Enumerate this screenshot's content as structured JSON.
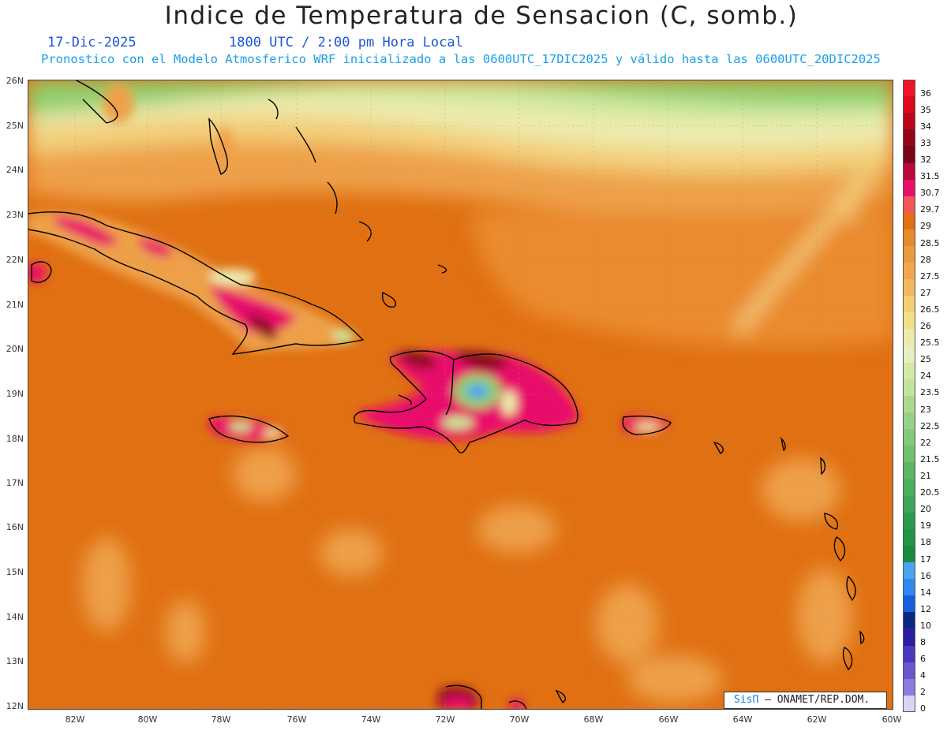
{
  "header": {
    "title": "Indice de Temperatura de Sensacion (C, somb.)",
    "date": "17-Dic-2025",
    "time": "1800 UTC / 2:00 pm Hora Local",
    "description": "Pronostico con el Modelo Atmosferico WRF inicializado a las 0600UTC_17DIC2025 y válido hasta las  0600UTC_20DIC2025"
  },
  "axes": {
    "lat_labels": [
      "26N",
      "25N",
      "24N",
      "23N",
      "22N",
      "21N",
      "20N",
      "19N",
      "18N",
      "17N",
      "16N",
      "15N",
      "14N",
      "13N",
      "12N"
    ],
    "lon_labels": [
      "82W",
      "80W",
      "78W",
      "76W",
      "74W",
      "72W",
      "70W",
      "68W",
      "66W",
      "64W",
      "62W",
      "60W"
    ]
  },
  "colorbar": {
    "labels": [
      "36",
      "35",
      "34",
      "33",
      "32",
      "31.5",
      "30.7",
      "29.7",
      "29",
      "28.5",
      "28",
      "27.5",
      "27",
      "26.5",
      "26",
      "25.5",
      "25",
      "24",
      "23.5",
      "23",
      "22.5",
      "22",
      "21.5",
      "21",
      "20.5",
      "20",
      "19",
      "18",
      "17",
      "16",
      "14",
      "12",
      "10",
      "8",
      "6",
      "4",
      "2",
      "0"
    ],
    "colors": [
      "#f2122a",
      "#dc0a1c",
      "#b8081a",
      "#96061a",
      "#7a0418",
      "#b80a3c",
      "#e8106a",
      "#f25656",
      "#e07012",
      "#e78a2e",
      "#eb9a40",
      "#efa84e",
      "#f2b85e",
      "#f5cd72",
      "#f4e08a",
      "#ecebae",
      "#e6efc2",
      "#d4eaa6",
      "#c2e49c",
      "#acda8c",
      "#98d08a",
      "#84c87c",
      "#72c070",
      "#5cb666",
      "#4aae5c",
      "#3ea45a",
      "#2c9a4c",
      "#229446",
      "#178c3e",
      "#4aa4f0",
      "#2c8af0",
      "#1a5ee0",
      "#0a2880",
      "#2a1ea0",
      "#4a36c0",
      "#6c56d0",
      "#8e7ae0",
      "#d8d4f4"
    ]
  },
  "credit": {
    "brand": "SisΠ",
    "text": "– ONAMET/REP.DOM."
  },
  "map": {
    "ocean_color": "#e07012",
    "land_colors": {
      "green": "#8fcf6e",
      "lightgreen": "#c7e69a",
      "pale": "#ecebae",
      "yellow": "#f3d07a",
      "peach": "#eea04a",
      "magenta": "#e8106a",
      "darkred": "#8e081e"
    }
  }
}
